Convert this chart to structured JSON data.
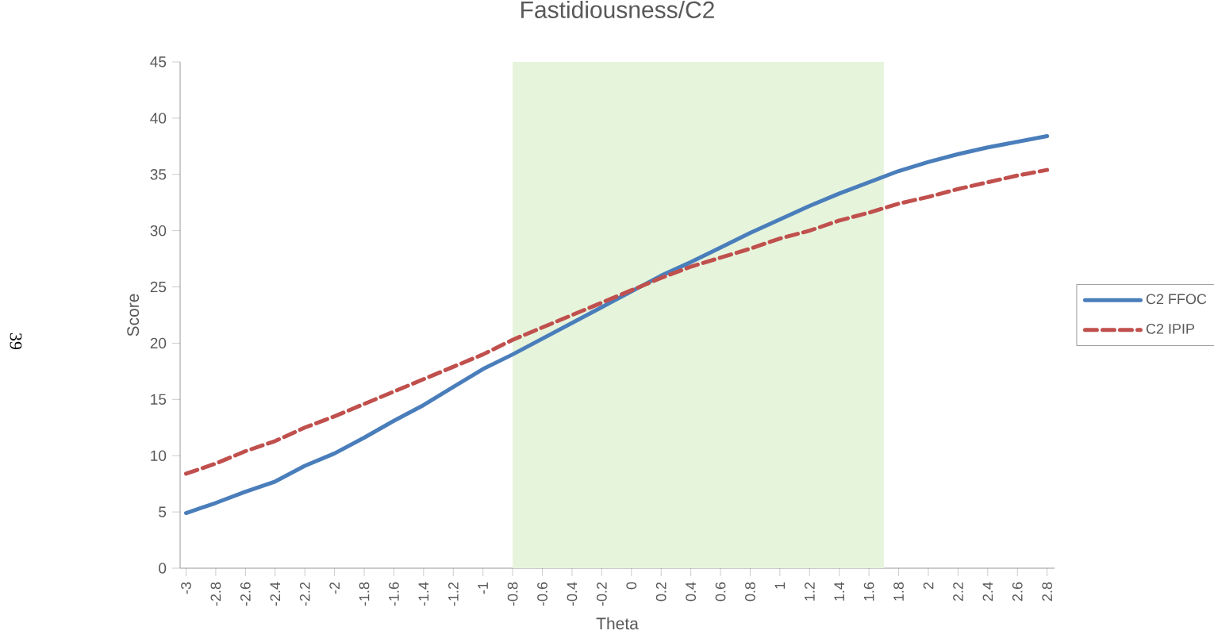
{
  "chart_data": {
    "type": "line",
    "title": "Fastidiousness/C2",
    "xlabel": "Theta",
    "ylabel": "Score",
    "x": [
      -3,
      -2.8,
      -2.6,
      -2.4,
      -2.2,
      -2,
      -1.8,
      -1.6,
      -1.4,
      -1.2,
      -1,
      -0.8,
      -0.6,
      -0.4,
      -0.2,
      0,
      0.2,
      0.4,
      0.6,
      0.8,
      1,
      1.2,
      1.4,
      1.6,
      1.8,
      2,
      2.2,
      2.4,
      2.6,
      2.8
    ],
    "series": [
      {
        "name": "C2 FFOC",
        "color": "#4a7ebb",
        "line_style": "solid",
        "values": [
          4.9,
          5.8,
          6.8,
          7.7,
          9.1,
          10.2,
          11.6,
          13.1,
          14.5,
          16.1,
          17.7,
          19.0,
          20.4,
          21.8,
          23.2,
          24.6,
          26.0,
          27.2,
          28.5,
          29.8,
          31.0,
          32.2,
          33.3,
          34.3,
          35.3,
          36.1,
          36.8,
          37.4,
          37.9,
          38.4
        ]
      },
      {
        "name": "C2 IPIP",
        "color": "#c0504d",
        "line_style": "dashed",
        "values": [
          8.4,
          9.3,
          10.4,
          11.3,
          12.5,
          13.5,
          14.6,
          15.7,
          16.8,
          17.9,
          19.0,
          20.3,
          21.4,
          22.5,
          23.6,
          24.7,
          25.8,
          26.8,
          27.6,
          28.4,
          29.3,
          30.0,
          30.9,
          31.6,
          32.4,
          33.0,
          33.7,
          34.3,
          34.9,
          35.4
        ]
      }
    ],
    "xlim": [
      -3.04,
      2.85
    ],
    "ylim": [
      0,
      45
    ],
    "xticks": [
      -3,
      -2.8,
      -2.6,
      -2.4,
      -2.2,
      -2,
      -1.8,
      -1.6,
      -1.4,
      -1.2,
      -1,
      -0.8,
      -0.6,
      -0.4,
      -0.2,
      0,
      0.2,
      0.4,
      0.6,
      0.8,
      1,
      1.2,
      1.4,
      1.6,
      1.8,
      2,
      2.2,
      2.4,
      2.6,
      2.8
    ],
    "yticks": [
      0,
      5,
      10,
      15,
      20,
      25,
      30,
      35,
      40,
      45
    ],
    "bands": [
      {
        "axis": "x",
        "from": -0.8,
        "to": 1.7,
        "color": "#e6f4dc"
      }
    ],
    "annotations": [
      "39"
    ],
    "legend": "right",
    "grid": false,
    "marker": "none"
  }
}
